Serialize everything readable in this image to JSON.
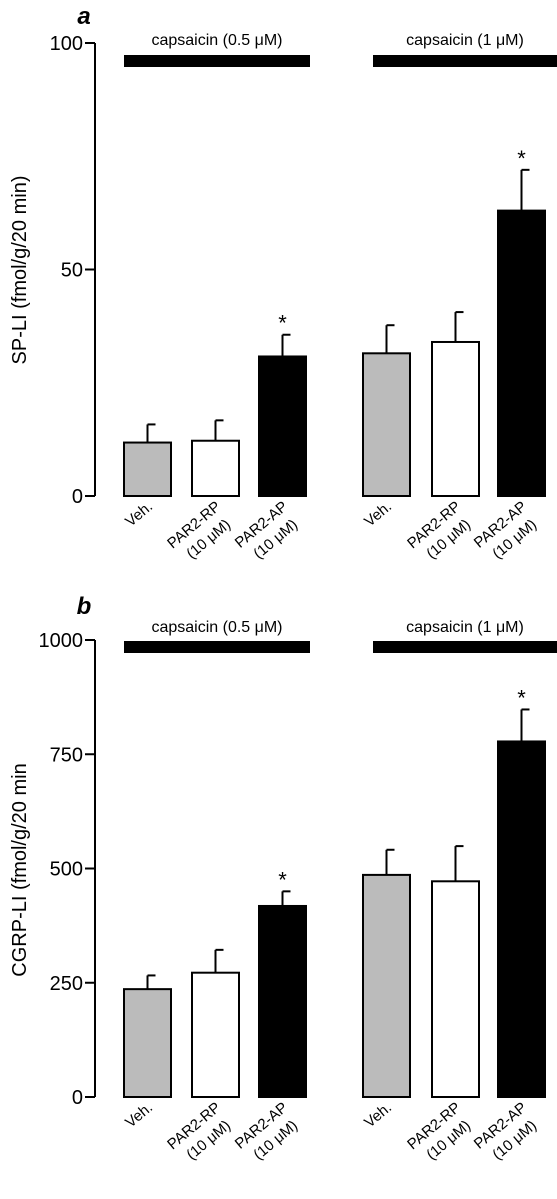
{
  "colors": {
    "vehicle": "#bbbbbb",
    "rp": "#ffffff",
    "ap": "#000000",
    "axis": "#000000"
  },
  "chart_data": [
    {
      "panel": "a",
      "type": "bar",
      "ylabel": "SP-LI (fmol/g/20 min)",
      "ylim": [
        0,
        100
      ],
      "yticks": [
        "0",
        "50",
        "100"
      ],
      "conditions": [
        "capsaicin (0.5 μM)",
        "capsaicin (1 μM)"
      ],
      "categories": [
        [
          "Veh."
        ],
        [
          "PAR2-RP",
          "(10 μM)"
        ],
        [
          "PAR2-AP",
          "(10 μM)"
        ]
      ],
      "groups": [
        {
          "condition": "capsaicin (0.5 μM)",
          "values": [
            11.8,
            12.2,
            30.8
          ],
          "errors": [
            4.0,
            4.5,
            4.8
          ],
          "significant": [
            false,
            false,
            true
          ]
        },
        {
          "condition": "capsaicin (1 μM)",
          "values": [
            31.5,
            34.0,
            63.0
          ],
          "errors": [
            6.2,
            6.6,
            9.0
          ],
          "significant": [
            false,
            false,
            true
          ]
        }
      ]
    },
    {
      "panel": "b",
      "type": "bar",
      "ylabel": "CGRP-LI (fmol/g/20 min",
      "ylim": [
        0,
        1000
      ],
      "yticks": [
        "0",
        "250",
        "500",
        "750",
        "1000"
      ],
      "conditions": [
        "capsaicin (0.5 μM)",
        "capsaicin (1 μM)"
      ],
      "categories": [
        [
          "Veh."
        ],
        [
          "PAR2-RP",
          "(10 μM)"
        ],
        [
          "PAR2-AP",
          "(10 μM)"
        ]
      ],
      "groups": [
        {
          "condition": "capsaicin (0.5 μM)",
          "values": [
            236,
            272,
            418
          ],
          "errors": [
            30,
            50,
            32
          ],
          "significant": [
            false,
            false,
            true
          ]
        },
        {
          "condition": "capsaicin (1 μM)",
          "values": [
            486,
            472,
            778
          ],
          "errors": [
            55,
            77,
            70
          ],
          "significant": [
            false,
            false,
            true
          ]
        }
      ]
    }
  ]
}
